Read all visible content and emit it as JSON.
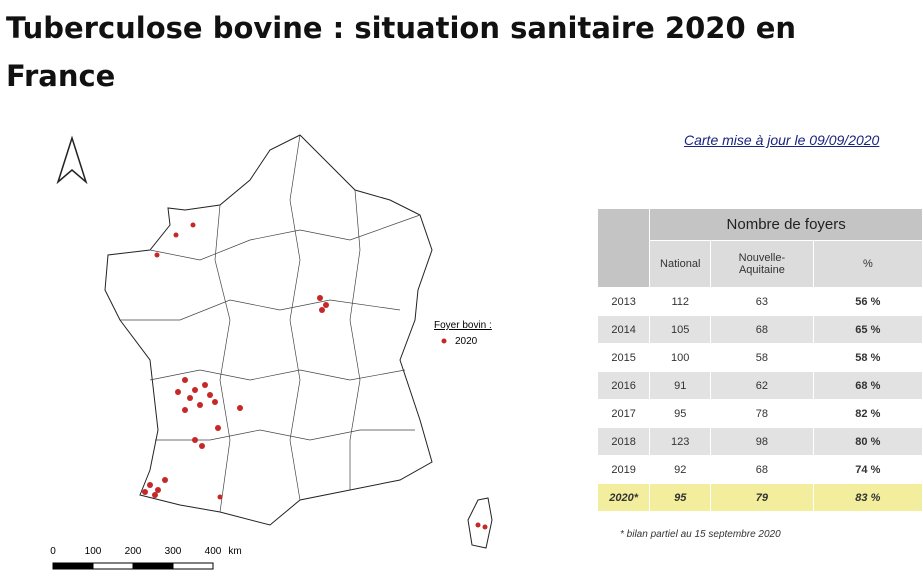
{
  "title": "Tuberculose bovine : situation sanitaire 2020 en France",
  "map": {
    "update_note": "Carte mise à jour le 09/09/2020",
    "legend_title": "Foyer bovin :",
    "legend_item": "2020",
    "scale_labels": [
      "0",
      "100",
      "200",
      "300",
      "400",
      "km"
    ]
  },
  "table": {
    "header": "Nombre de foyers",
    "columns": [
      "National",
      "Nouvelle-Aquitaine",
      "%"
    ],
    "rows": [
      [
        "2013",
        "112",
        "63",
        "56 %"
      ],
      [
        "2014",
        "105",
        "68",
        "65 %"
      ],
      [
        "2015",
        "100",
        "58",
        "58 %"
      ],
      [
        "2016",
        "91",
        "62",
        "68 %"
      ],
      [
        "2017",
        "95",
        "78",
        "82 %"
      ],
      [
        "2018",
        "123",
        "98",
        "80 %"
      ],
      [
        "2019",
        "92",
        "68",
        "74 %"
      ],
      [
        "2020*",
        "95",
        "79",
        "83 %"
      ]
    ],
    "footnote": "* bilan partiel au 15 septembre 2020"
  }
}
